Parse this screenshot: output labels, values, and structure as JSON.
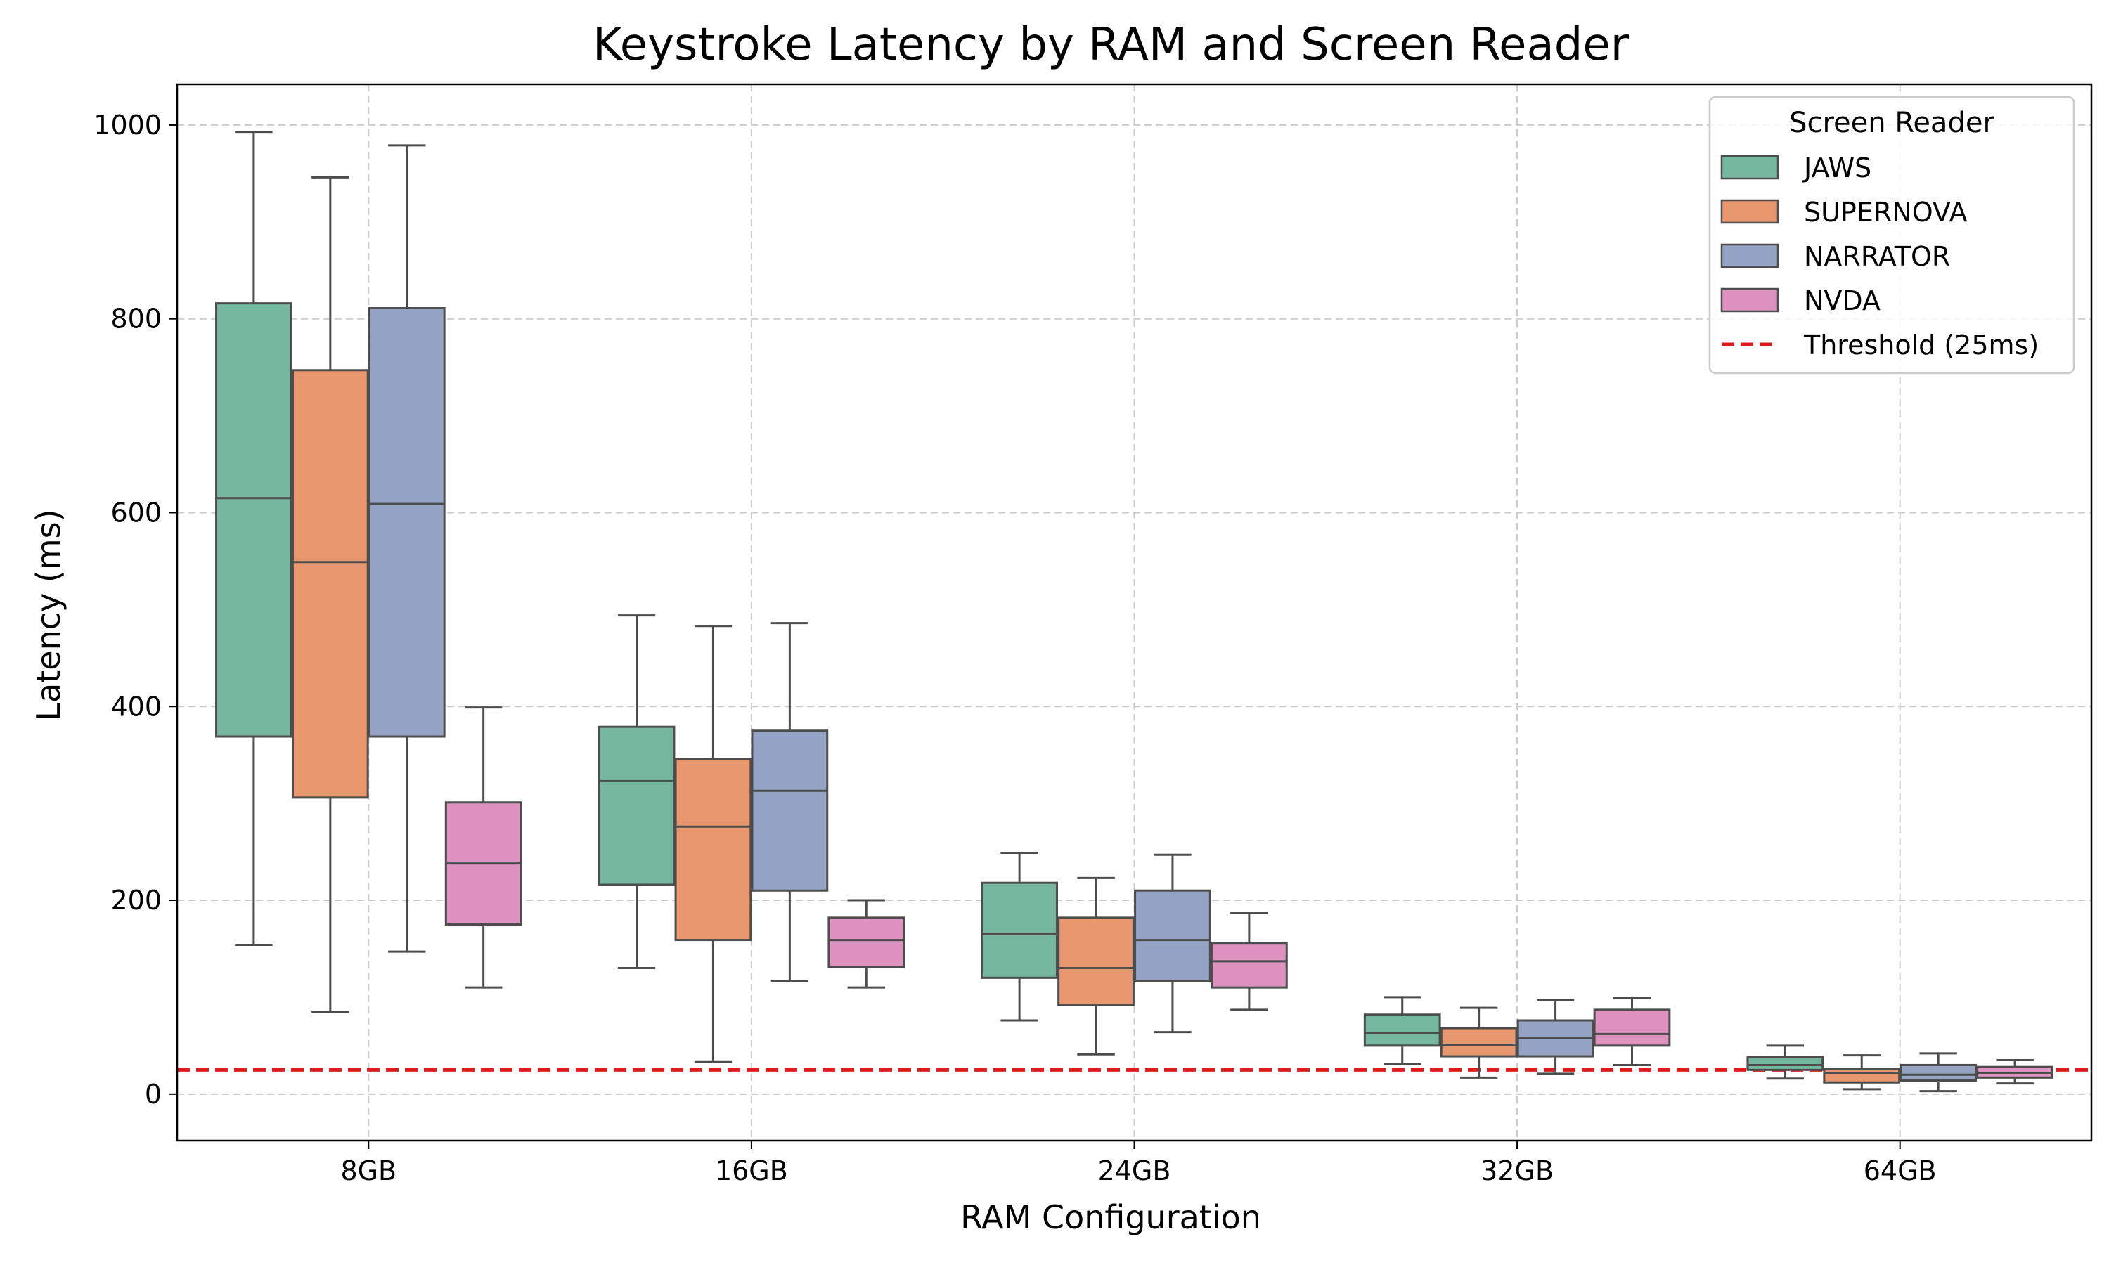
{
  "chart_data": {
    "type": "box",
    "title": "Keystroke Latency by RAM and Screen Reader",
    "xlabel": "RAM Configuration",
    "ylabel": "Latency (ms)",
    "categories": [
      "8GB",
      "16GB",
      "24GB",
      "32GB",
      "64GB"
    ],
    "ylim": [
      -48,
      1042
    ],
    "yticks": [
      0,
      200,
      400,
      600,
      800,
      1000
    ],
    "grid": true,
    "legend": {
      "title": "Screen Reader",
      "placement": "top-right"
    },
    "series": [
      {
        "name": "JAWS",
        "color": "#76b7a0",
        "boxes": [
          {
            "whisker_low": 154,
            "q1": 369,
            "median": 615,
            "q3": 816,
            "whisker_high": 993
          },
          {
            "whisker_low": 130,
            "q1": 216,
            "median": 323,
            "q3": 379,
            "whisker_high": 494
          },
          {
            "whisker_low": 76,
            "q1": 120,
            "median": 165,
            "q3": 218,
            "whisker_high": 249
          },
          {
            "whisker_low": 31,
            "q1": 50,
            "median": 63,
            "q3": 82,
            "whisker_high": 100
          },
          {
            "whisker_low": 16,
            "q1": 25,
            "median": 30,
            "q3": 38,
            "whisker_high": 50
          }
        ]
      },
      {
        "name": "SUPERNOVA",
        "color": "#e9976f",
        "boxes": [
          {
            "whisker_low": 85,
            "q1": 306,
            "median": 549,
            "q3": 747,
            "whisker_high": 946
          },
          {
            "whisker_low": 33,
            "q1": 159,
            "median": 276,
            "q3": 346,
            "whisker_high": 483
          },
          {
            "whisker_low": 41,
            "q1": 92,
            "median": 130,
            "q3": 182,
            "whisker_high": 223
          },
          {
            "whisker_low": 17,
            "q1": 39,
            "median": 51,
            "q3": 68,
            "whisker_high": 89
          },
          {
            "whisker_low": 5,
            "q1": 12,
            "median": 22,
            "q3": 26,
            "whisker_high": 40
          }
        ]
      },
      {
        "name": "NARRATOR",
        "color": "#95a4c4",
        "boxes": [
          {
            "whisker_low": 147,
            "q1": 369,
            "median": 609,
            "q3": 811,
            "whisker_high": 979
          },
          {
            "whisker_low": 117,
            "q1": 210,
            "median": 313,
            "q3": 375,
            "whisker_high": 486
          },
          {
            "whisker_low": 64,
            "q1": 117,
            "median": 159,
            "q3": 210,
            "whisker_high": 247
          },
          {
            "whisker_low": 21,
            "q1": 39,
            "median": 58,
            "q3": 76,
            "whisker_high": 97
          },
          {
            "whisker_low": 3,
            "q1": 14,
            "median": 20,
            "q3": 30,
            "whisker_high": 42
          }
        ]
      },
      {
        "name": "NVDA",
        "color": "#dd92c0",
        "boxes": [
          {
            "whisker_low": 110,
            "q1": 175,
            "median": 238,
            "q3": 301,
            "whisker_high": 399
          },
          {
            "whisker_low": 110,
            "q1": 131,
            "median": 159,
            "q3": 182,
            "whisker_high": 200
          },
          {
            "whisker_low": 87,
            "q1": 110,
            "median": 137,
            "q3": 156,
            "whisker_high": 187
          },
          {
            "whisker_low": 30,
            "q1": 50,
            "median": 62,
            "q3": 87,
            "whisker_high": 99
          },
          {
            "whisker_low": 11,
            "q1": 17,
            "median": 22,
            "q3": 28,
            "whisker_high": 35
          }
        ]
      }
    ],
    "threshold": {
      "name": "Threshold (25ms)",
      "value": 25,
      "color": "#dd1c1c",
      "style": "dashed"
    }
  }
}
